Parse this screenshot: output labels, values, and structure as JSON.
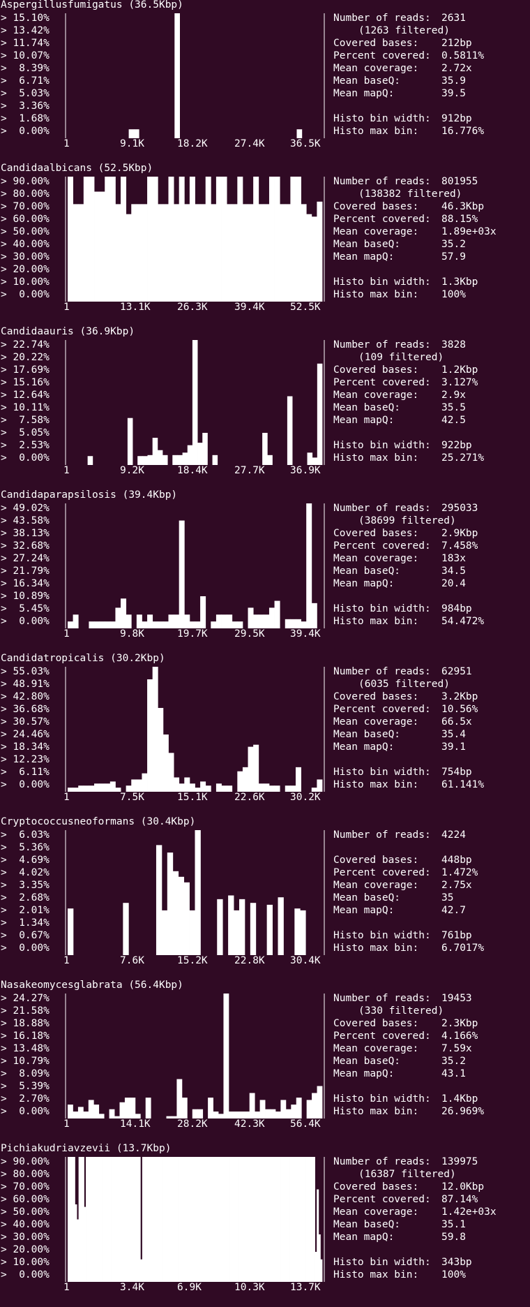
{
  "chart_data": [
    {
      "type": "bar",
      "title": "Aspergillusfumigatus (36.5Kbp)",
      "yticks": [
        "15.10%",
        "13.42%",
        "11.74%",
        "10.07%",
        "8.39%",
        "6.71%",
        "5.03%",
        "3.36%",
        "1.68%",
        "0.00%"
      ],
      "xticks": [
        "1",
        "9.1K",
        "18.2K",
        "27.4K",
        "36.5K"
      ],
      "ymax": 16.776,
      "values": [
        0,
        0,
        0,
        0,
        0,
        0,
        0,
        0,
        0,
        0,
        0,
        0,
        1.2,
        1.2,
        0,
        0,
        0,
        0,
        0,
        0,
        0,
        16.776,
        0,
        0,
        0,
        0,
        0,
        0,
        0,
        0,
        0,
        0,
        0,
        0,
        0,
        0,
        0,
        0,
        0,
        0,
        0,
        0,
        0,
        0,
        0,
        1.2,
        0,
        0,
        0,
        0
      ],
      "stats": [
        {
          "label": "Number of reads:",
          "value": "2631"
        },
        {
          "label": "",
          "value": "(1263 filtered)"
        },
        {
          "label": "Covered bases:",
          "value": "212bp"
        },
        {
          "label": "Percent covered:",
          "value": "0.5811%"
        },
        {
          "label": "Mean coverage:",
          "value": "2.72x"
        },
        {
          "label": "Mean baseQ:",
          "value": "35.9"
        },
        {
          "label": "Mean mapQ:",
          "value": "39.5"
        },
        {
          "label": "",
          "value": ""
        },
        {
          "label": "Histo bin width:",
          "value": "912bp"
        },
        {
          "label": "Histo max bin:",
          "value": "16.776%"
        }
      ]
    },
    {
      "type": "bar",
      "title": "Candidaalbicans (52.5Kbp)",
      "yticks": [
        "90.00%",
        "80.00%",
        "70.00%",
        "60.00%",
        "50.00%",
        "40.00%",
        "30.00%",
        "20.00%",
        "10.00%",
        "0.00%"
      ],
      "xticks": [
        "1",
        "13.1K",
        "26.3K",
        "39.4K",
        "52.5K"
      ],
      "ymax": 100,
      "values": [
        100,
        78,
        78,
        100,
        100,
        88,
        88,
        100,
        100,
        78,
        100,
        70,
        78,
        78,
        78,
        100,
        100,
        78,
        78,
        100,
        78,
        100,
        78,
        100,
        78,
        78,
        100,
        78,
        100,
        100,
        78,
        78,
        100,
        78,
        78,
        100,
        78,
        78,
        100,
        100,
        78,
        78,
        100,
        100,
        78,
        70,
        68,
        80
      ],
      "stats": [
        {
          "label": "Number of reads:",
          "value": "801955"
        },
        {
          "label": "",
          "value": "(138382 filtered)"
        },
        {
          "label": "Covered bases:",
          "value": "46.3Kbp"
        },
        {
          "label": "Percent covered:",
          "value": "88.15%"
        },
        {
          "label": "Mean coverage:",
          "value": "1.89e+03x"
        },
        {
          "label": "Mean baseQ:",
          "value": "35.2"
        },
        {
          "label": "Mean mapQ:",
          "value": "57.9"
        },
        {
          "label": "",
          "value": ""
        },
        {
          "label": "Histo bin width:",
          "value": "1.3Kbp"
        },
        {
          "label": "Histo max bin:",
          "value": "100%"
        }
      ]
    },
    {
      "type": "bar",
      "title": "Candidaauris (36.9Kbp)",
      "yticks": [
        "22.74%",
        "20.22%",
        "17.69%",
        "15.16%",
        "12.64%",
        "10.11%",
        "7.58%",
        "5.05%",
        "2.53%",
        "0.00%"
      ],
      "xticks": [
        "1",
        "9.2K",
        "18.4K",
        "27.7K",
        "36.9K"
      ],
      "ymax": 25.271,
      "values": [
        0,
        0,
        0,
        0,
        1.8,
        0,
        0,
        0,
        0,
        0,
        0,
        0,
        9.5,
        0,
        1.8,
        1.8,
        2.0,
        5.5,
        3.0,
        2.0,
        0,
        2.0,
        2.0,
        2.5,
        4.0,
        25.271,
        4.5,
        6.5,
        0,
        2.0,
        0,
        0,
        0,
        0,
        0,
        0,
        0,
        0,
        0,
        6.5,
        2.0,
        0,
        0,
        0,
        13.9,
        0,
        0,
        0,
        2.5,
        1.5,
        20.5
      ],
      "stats": [
        {
          "label": "Number of reads:",
          "value": "3828"
        },
        {
          "label": "",
          "value": "(109 filtered)"
        },
        {
          "label": "Covered bases:",
          "value": "1.2Kbp"
        },
        {
          "label": "Percent covered:",
          "value": "3.127%"
        },
        {
          "label": "Mean coverage:",
          "value": "2.9x"
        },
        {
          "label": "Mean baseQ:",
          "value": "35.5"
        },
        {
          "label": "Mean mapQ:",
          "value": "42.5"
        },
        {
          "label": "",
          "value": ""
        },
        {
          "label": "Histo bin width:",
          "value": "922bp"
        },
        {
          "label": "Histo max bin:",
          "value": "25.271%"
        }
      ]
    },
    {
      "type": "bar",
      "title": "Candidaparapsilosis (39.4Kbp)",
      "yticks": [
        "49.02%",
        "43.58%",
        "38.13%",
        "32.68%",
        "27.24%",
        "21.79%",
        "16.34%",
        "10.89%",
        "5.45%",
        "0.00%"
      ],
      "xticks": [
        "1",
        "9.8K",
        "19.7K",
        "29.5K",
        "39.4K"
      ],
      "ymax": 54.472,
      "values": [
        3,
        6,
        0,
        0,
        3,
        3,
        3,
        3,
        3,
        9,
        13,
        6,
        0,
        6,
        3,
        6,
        3,
        3,
        3,
        6,
        6,
        47,
        6,
        3,
        3,
        14,
        0,
        3,
        6,
        6,
        6,
        3,
        3,
        0,
        9,
        6,
        6,
        6,
        9,
        12,
        0,
        4,
        4,
        4,
        3,
        54.472,
        11,
        0
      ],
      "stats": [
        {
          "label": "Number of reads:",
          "value": "295033"
        },
        {
          "label": "",
          "value": "(38699 filtered)"
        },
        {
          "label": "Covered bases:",
          "value": "2.9Kbp"
        },
        {
          "label": "Percent covered:",
          "value": "7.458%"
        },
        {
          "label": "Mean coverage:",
          "value": "183x"
        },
        {
          "label": "Mean baseQ:",
          "value": "34.5"
        },
        {
          "label": "Mean mapQ:",
          "value": "20.4"
        },
        {
          "label": "",
          "value": ""
        },
        {
          "label": "Histo bin width:",
          "value": "984bp"
        },
        {
          "label": "Histo max bin:",
          "value": "54.472%"
        }
      ]
    },
    {
      "type": "bar",
      "title": "Candidatropicalis (30.2Kbp)",
      "yticks": [
        "55.03%",
        "48.91%",
        "42.80%",
        "36.68%",
        "30.57%",
        "24.46%",
        "18.34%",
        "12.23%",
        "6.11%",
        "0.00%"
      ],
      "xticks": [
        "1",
        "7.5K",
        "15.1K",
        "22.6K",
        "30.2K"
      ],
      "ymax": 61.141,
      "values": [
        2,
        2,
        3,
        3,
        3,
        4,
        4,
        4,
        5,
        2,
        0,
        3,
        6,
        6,
        9,
        55,
        61.141,
        41,
        28,
        19,
        7,
        4,
        7,
        4,
        2,
        5,
        3,
        0,
        4,
        3,
        3,
        0,
        10,
        12,
        22,
        23,
        4,
        4,
        3,
        3,
        0,
        3,
        3,
        12,
        0,
        0,
        2,
        6
      ],
      "stats": [
        {
          "label": "Number of reads:",
          "value": "62951"
        },
        {
          "label": "",
          "value": "(6035 filtered)"
        },
        {
          "label": "Covered bases:",
          "value": "3.2Kbp"
        },
        {
          "label": "Percent covered:",
          "value": "10.56%"
        },
        {
          "label": "Mean coverage:",
          "value": "66.5x"
        },
        {
          "label": "Mean baseQ:",
          "value": "35.4"
        },
        {
          "label": "Mean mapQ:",
          "value": "39.1"
        },
        {
          "label": "",
          "value": ""
        },
        {
          "label": "Histo bin width:",
          "value": "754bp"
        },
        {
          "label": "Histo max bin:",
          "value": "61.141%"
        }
      ]
    },
    {
      "type": "bar",
      "title": "Cryptococcusneoformans (30.4Kbp)",
      "yticks": [
        "6.03%",
        "5.36%",
        "4.69%",
        "4.02%",
        "3.35%",
        "2.68%",
        "2.01%",
        "1.34%",
        "0.67%",
        "0.00%"
      ],
      "xticks": [
        "1",
        "7.6K",
        "15.2K",
        "22.8K",
        "30.4K"
      ],
      "ymax": 6.7017,
      "values": [
        2.5,
        0,
        0,
        0,
        0,
        0,
        0,
        0,
        0,
        0,
        2.8,
        0,
        0,
        0,
        0,
        0,
        5.9,
        2.4,
        5.5,
        4.5,
        4.2,
        3.9,
        2.4,
        6.7017,
        0,
        0,
        0,
        3.0,
        0,
        3.2,
        2.4,
        3.0,
        0,
        2.8,
        0,
        0,
        2.7,
        0,
        3.1,
        0,
        0,
        2.5,
        2.4,
        0,
        0,
        0
      ],
      "stats": [
        {
          "label": "Number of reads:",
          "value": "4224"
        },
        {
          "label": "",
          "value": ""
        },
        {
          "label": "Covered bases:",
          "value": "448bp"
        },
        {
          "label": "Percent covered:",
          "value": "1.472%"
        },
        {
          "label": "Mean coverage:",
          "value": "2.75x"
        },
        {
          "label": "Mean baseQ:",
          "value": "35"
        },
        {
          "label": "Mean mapQ:",
          "value": "42.7"
        },
        {
          "label": "",
          "value": ""
        },
        {
          "label": "Histo bin width:",
          "value": "761bp"
        },
        {
          "label": "Histo max bin:",
          "value": "6.7017%"
        }
      ]
    },
    {
      "type": "bar",
      "title": "Nasakeomycesglabrata (56.4Kbp)",
      "yticks": [
        "24.27%",
        "21.58%",
        "18.88%",
        "16.18%",
        "13.48%",
        "10.79%",
        "8.09%",
        "5.39%",
        "2.70%",
        "0.00%"
      ],
      "xticks": [
        "1",
        "14.1K",
        "28.2K",
        "42.3K",
        "56.4K"
      ],
      "ymax": 26.969,
      "values": [
        3,
        1.5,
        2.5,
        1.5,
        4,
        3,
        1,
        0,
        2,
        0.5,
        3.5,
        4.5,
        4.5,
        1,
        0,
        4.5,
        0,
        0,
        0,
        0.5,
        0.5,
        8.5,
        4.5,
        0,
        2,
        2,
        0,
        4.5,
        1.5,
        1,
        26.969,
        1.5,
        1.5,
        1.5,
        1.5,
        5.5,
        1.5,
        4,
        2,
        2,
        1.5,
        4,
        2,
        3,
        4.5,
        0,
        4,
        5.5,
        7
      ],
      "stats": [
        {
          "label": "Number of reads:",
          "value": "19453"
        },
        {
          "label": "",
          "value": "(330 filtered)"
        },
        {
          "label": "Covered bases:",
          "value": "2.3Kbp"
        },
        {
          "label": "Percent covered:",
          "value": "4.166%"
        },
        {
          "label": "Mean coverage:",
          "value": "7.59x"
        },
        {
          "label": "Mean baseQ:",
          "value": "35.2"
        },
        {
          "label": "Mean mapQ:",
          "value": "43.1"
        },
        {
          "label": "",
          "value": ""
        },
        {
          "label": "Histo bin width:",
          "value": "1.4Kbp"
        },
        {
          "label": "Histo max bin:",
          "value": "26.969%"
        }
      ]
    },
    {
      "type": "bar",
      "title": "Pichiakudriavzevii (13.7Kbp)",
      "yticks": [
        "90.00%",
        "80.00%",
        "70.00%",
        "60.00%",
        "50.00%",
        "40.00%",
        "30.00%",
        "20.00%",
        "10.00%",
        "0.00%"
      ],
      "xticks": [
        "1",
        "3.4K",
        "6.9K",
        "10.3K",
        "13.7K"
      ],
      "ymax": 100,
      "values": [
        100,
        100,
        100,
        100,
        62,
        50,
        100,
        100,
        100,
        60,
        100,
        100,
        100,
        100,
        100,
        100,
        100,
        100,
        100,
        100,
        100,
        100,
        100,
        100,
        100,
        100,
        100,
        100,
        100,
        100,
        100,
        100,
        100,
        100,
        100,
        100,
        100,
        100,
        100,
        100,
        18,
        100,
        100,
        100,
        100,
        100,
        100,
        100,
        100,
        100,
        100,
        100,
        100,
        100,
        100,
        100,
        100,
        100,
        100,
        100,
        100,
        100,
        100,
        100,
        100,
        100,
        100,
        100,
        100,
        100,
        100,
        100,
        100,
        100,
        100,
        100,
        100,
        100,
        100,
        100,
        100,
        100,
        100,
        100,
        100,
        100,
        100,
        100,
        100,
        100,
        100,
        100,
        100,
        100,
        100,
        100,
        100,
        100,
        100,
        100,
        100,
        100,
        100,
        100,
        100,
        100,
        100,
        100,
        100,
        100,
        100,
        100,
        100,
        100,
        100,
        100,
        100,
        100,
        100,
        100,
        100,
        100,
        100,
        100,
        100,
        100,
        100,
        100,
        100,
        100,
        100,
        100,
        100,
        100,
        100,
        100,
        24,
        74,
        38,
        18
      ],
      "stats": [
        {
          "label": "Number of reads:",
          "value": "139975"
        },
        {
          "label": "",
          "value": "(16387 filtered)"
        },
        {
          "label": "Covered bases:",
          "value": "12.0Kbp"
        },
        {
          "label": "Percent covered:",
          "value": "87.14%"
        },
        {
          "label": "Mean coverage:",
          "value": "1.42e+03x"
        },
        {
          "label": "Mean baseQ:",
          "value": "35.1"
        },
        {
          "label": "Mean mapQ:",
          "value": "59.8"
        },
        {
          "label": "",
          "value": ""
        },
        {
          "label": "Histo bin width:",
          "value": "343bp"
        },
        {
          "label": "Histo max bin:",
          "value": "100%"
        }
      ]
    }
  ]
}
